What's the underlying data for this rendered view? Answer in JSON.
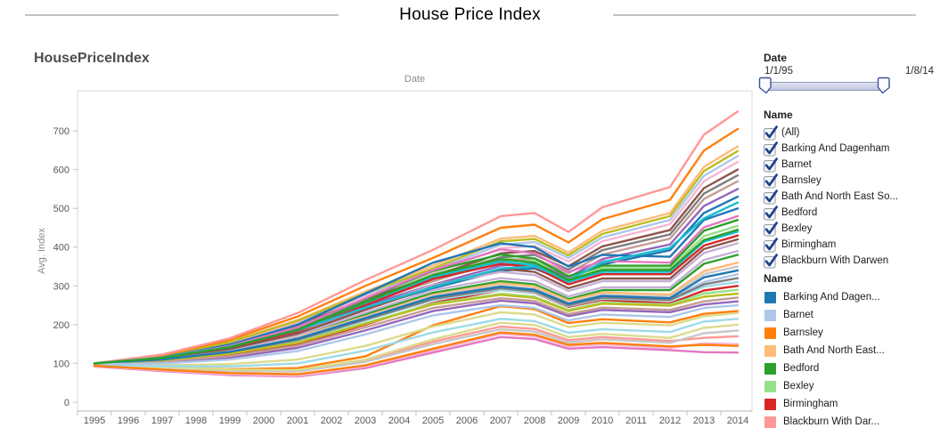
{
  "title": "House Price Index",
  "sheet_title": "HousePriceIndex",
  "date_filter": {
    "label": "Date",
    "start": "1/1/95",
    "end": "1/8/14"
  },
  "name_filter": {
    "label": "Name",
    "items": [
      {
        "label": "(All)",
        "checked": true
      },
      {
        "label": "Barking And Dagenham",
        "checked": true
      },
      {
        "label": "Barnet",
        "checked": true
      },
      {
        "label": "Barnsley",
        "checked": true
      },
      {
        "label": "Bath And North East So...",
        "checked": true
      },
      {
        "label": "Bedford",
        "checked": true
      },
      {
        "label": "Bexley",
        "checked": true
      },
      {
        "label": "Birmingham",
        "checked": true
      },
      {
        "label": "Blackburn With Darwen",
        "checked": true
      }
    ]
  },
  "legend": {
    "label": "Name",
    "items": [
      {
        "label": "Barking And Dagen...",
        "color": "#1f77b4"
      },
      {
        "label": "Barnet",
        "color": "#aec7e8"
      },
      {
        "label": "Barnsley",
        "color": "#ff7f0e"
      },
      {
        "label": "Bath And North East...",
        "color": "#ffbb78"
      },
      {
        "label": "Bedford",
        "color": "#2ca02c"
      },
      {
        "label": "Bexley",
        "color": "#98df8a"
      },
      {
        "label": "Birmingham",
        "color": "#d62728"
      },
      {
        "label": "Blackburn With Dar...",
        "color": "#ff9896"
      }
    ]
  },
  "chart_data": {
    "type": "line",
    "title": "HousePriceIndex",
    "xlabel": "Date",
    "ylabel": "Avg. Index",
    "x_ticks": [
      1995,
      1996,
      1997,
      1998,
      1999,
      2000,
      2001,
      2002,
      2003,
      2004,
      2005,
      2006,
      2007,
      2008,
      2009,
      2010,
      2011,
      2012,
      2013,
      2014
    ],
    "y_ticks": [
      0,
      100,
      200,
      300,
      400,
      500,
      600,
      700
    ],
    "ylim": [
      0,
      800
    ],
    "xlim": [
      1995,
      2015
    ],
    "grid": false,
    "legend_position": "right",
    "x": [
      1995,
      1997,
      1999,
      2001,
      2003,
      2005,
      2007,
      2008,
      2009,
      2010,
      2012,
      2013,
      2014
    ],
    "series": [
      {
        "name": "Barking And Dagenham",
        "color": "#1f77b4",
        "values": [
          100,
          115,
          143,
          186,
          242,
          294,
          339,
          345,
          310,
          355,
          392,
          488,
          530
        ]
      },
      {
        "name": "Barnet",
        "color": "#aec7e8",
        "values": [
          100,
          119,
          154,
          207,
          277,
          341,
          406,
          413,
          372,
          425,
          470,
          584,
          635
        ]
      },
      {
        "name": "Barnsley",
        "color": "#ff7f0e",
        "values": [
          97,
          90,
          85,
          88,
          118,
          198,
          248,
          240,
          204,
          214,
          206,
          228,
          235
        ]
      },
      {
        "name": "Bath And North East Somerset",
        "color": "#ffbb78",
        "values": [
          100,
          120,
          156,
          212,
          285,
          352,
          422,
          429,
          386,
          442,
          488,
          607,
          660
        ]
      },
      {
        "name": "Bedford",
        "color": "#2ca02c",
        "values": [
          100,
          111,
          134,
          170,
          226,
          282,
          312,
          304,
          266,
          289,
          289,
          357,
          380
        ]
      },
      {
        "name": "Bexley",
        "color": "#98df8a",
        "values": [
          100,
          114,
          143,
          189,
          260,
          331,
          373,
          364,
          319,
          346,
          346,
          428,
          455
        ]
      },
      {
        "name": "Birmingham",
        "color": "#d62728",
        "values": [
          100,
          106,
          122,
          150,
          200,
          256,
          290,
          282,
          246,
          264,
          255,
          288,
          300
        ]
      },
      {
        "name": "Blackburn With Darwen",
        "color": "#ff9896",
        "values": [
          96,
          89,
          83,
          82,
          108,
          156,
          195,
          189,
          160,
          168,
          158,
          166,
          170
        ]
      },
      {
        "name": "",
        "color": "#9467bd",
        "values": [
          100,
          116,
          145,
          190,
          249,
          303,
          352,
          358,
          322,
          369,
          407,
          506,
          550
        ]
      },
      {
        "name": "",
        "color": "#c5b0d5",
        "values": [
          100,
          112,
          137,
          178,
          240,
          302,
          336,
          328,
          287,
          312,
          312,
          385,
          410
        ]
      },
      {
        "name": "",
        "color": "#8c564b",
        "values": [
          100,
          118,
          150,
          200,
          265,
          325,
          384,
          390,
          351,
          402,
          444,
          552,
          600
        ]
      },
      {
        "name": "",
        "color": "#c49c94",
        "values": [
          100,
          116,
          147,
          194,
          255,
          312,
          365,
          371,
          333,
          381,
          422,
          524,
          570
        ]
      },
      {
        "name": "",
        "color": "#e377c2",
        "values": [
          92,
          80,
          70,
          66,
          88,
          128,
          168,
          163,
          138,
          142,
          134,
          129,
          128
        ]
      },
      {
        "name": "",
        "color": "#f7b6d2",
        "values": [
          100,
          118,
          152,
          204,
          272,
          334,
          397,
          403,
          363,
          415,
          459,
          570,
          620
        ]
      },
      {
        "name": "",
        "color": "#7f7f7f",
        "values": [
          100,
          117,
          149,
          197,
          260,
          318,
          374,
          380,
          342,
          392,
          433,
          538,
          585
        ]
      },
      {
        "name": "",
        "color": "#c7c7c7",
        "values": [
          95,
          87,
          80,
          79,
          104,
          150,
          188,
          182,
          154,
          162,
          153,
          178,
          185
        ]
      },
      {
        "name": "",
        "color": "#bcbd22",
        "values": [
          100,
          119,
          155,
          210,
          281,
          345,
          415,
          421,
          379,
          434,
          480,
          596,
          648
        ]
      },
      {
        "name": "",
        "color": "#dbdb8d",
        "values": [
          96,
          90,
          84,
          83,
          110,
          162,
          205,
          199,
          168,
          176,
          166,
          192,
          200
        ]
      },
      {
        "name": "",
        "color": "#17becf",
        "values": [
          100,
          113,
          141,
          185,
          254,
          323,
          363,
          354,
          310,
          336,
          336,
          414,
          440
        ]
      },
      {
        "name": "",
        "color": "#9edae5",
        "values": [
          100,
          109,
          128,
          159,
          211,
          263,
          290,
          283,
          248,
          267,
          262,
          298,
          310
        ]
      },
      {
        "name": "",
        "color": "#1f77b4",
        "values": [
          100,
          116,
          148,
          200,
          280,
          360,
          410,
          400,
          350,
          380,
          375,
          470,
          500
        ]
      },
      {
        "name": "",
        "color": "#aec7e8",
        "values": [
          100,
          110,
          130,
          163,
          216,
          270,
          298,
          290,
          254,
          274,
          268,
          310,
          330
        ]
      },
      {
        "name": "",
        "color": "#ff7f0e",
        "values": [
          100,
          121,
          161,
          221,
          300,
          372,
          450,
          458,
          412,
          472,
          522,
          649,
          705
        ]
      },
      {
        "name": "",
        "color": "#ffbb78",
        "values": [
          100,
          111,
          133,
          168,
          221,
          277,
          307,
          299,
          262,
          283,
          278,
          338,
          360
        ]
      },
      {
        "name": "",
        "color": "#2ca02c",
        "values": [
          100,
          115,
          144,
          192,
          266,
          339,
          381,
          371,
          325,
          352,
          352,
          442,
          470
        ]
      },
      {
        "name": "",
        "color": "#98df8a",
        "values": [
          100,
          108,
          126,
          155,
          204,
          254,
          280,
          272,
          238,
          257,
          252,
          280,
          290
        ]
      },
      {
        "name": "",
        "color": "#d62728",
        "values": [
          100,
          113,
          140,
          183,
          250,
          318,
          357,
          348,
          304,
          330,
          330,
          404,
          430
        ]
      },
      {
        "name": "",
        "color": "#ff9896",
        "values": [
          100,
          123,
          165,
          230,
          315,
          393,
          480,
          488,
          439,
          503,
          555,
          690,
          750
        ]
      },
      {
        "name": "",
        "color": "#9467bd",
        "values": [
          98,
          102,
          115,
          140,
          185,
          235,
          262,
          255,
          222,
          238,
          232,
          252,
          260
        ]
      },
      {
        "name": "",
        "color": "#c5b0d5",
        "values": [
          100,
          112,
          135,
          173,
          231,
          289,
          320,
          312,
          273,
          296,
          296,
          367,
          390
        ]
      },
      {
        "name": "",
        "color": "#8c564b",
        "values": [
          100,
          112,
          137,
          177,
          238,
          298,
          344,
          336,
          294,
          319,
          319,
          395,
          420
        ]
      },
      {
        "name": "",
        "color": "#c49c94",
        "values": [
          99,
          105,
          119,
          146,
          193,
          243,
          268,
          261,
          227,
          244,
          238,
          260,
          270
        ]
      },
      {
        "name": "",
        "color": "#e377c2",
        "values": [
          100,
          115,
          145,
          193,
          268,
          341,
          394,
          384,
          336,
          364,
          360,
          451,
          480
        ]
      },
      {
        "name": "",
        "color": "#f7b6d2",
        "values": [
          93,
          82,
          72,
          68,
          92,
          134,
          176,
          170,
          144,
          149,
          140,
          152,
          150
        ]
      },
      {
        "name": "",
        "color": "#7f7f7f",
        "values": [
          100,
          109,
          129,
          161,
          213,
          266,
          294,
          286,
          250,
          270,
          264,
          304,
          320
        ]
      },
      {
        "name": "",
        "color": "#c7c7c7",
        "values": [
          100,
          110,
          131,
          166,
          219,
          274,
          301,
          293,
          256,
          277,
          272,
          330,
          350
        ]
      },
      {
        "name": "",
        "color": "#bcbd22",
        "values": [
          100,
          108,
          125,
          153,
          202,
          252,
          277,
          269,
          235,
          254,
          249,
          272,
          280
        ]
      },
      {
        "name": "",
        "color": "#dbdb8d",
        "values": [
          97,
          95,
          98,
          110,
          145,
          195,
          232,
          226,
          194,
          205,
          198,
          222,
          230
        ]
      },
      {
        "name": "",
        "color": "#17becf",
        "values": [
          100,
          115,
          143,
          186,
          244,
          297,
          345,
          350,
          315,
          361,
          398,
          474,
          515
        ]
      },
      {
        "name": "",
        "color": "#9edae5",
        "values": [
          97,
          93,
          92,
          100,
          133,
          180,
          215,
          209,
          179,
          188,
          181,
          208,
          215
        ]
      },
      {
        "name": "",
        "color": "#1f77b4",
        "values": [
          100,
          110,
          130,
          164,
          217,
          271,
          298,
          290,
          254,
          274,
          268,
          322,
          340
        ]
      },
      {
        "name": "",
        "color": "#aec7e8",
        "values": [
          98,
          100,
          110,
          132,
          175,
          224,
          250,
          243,
          211,
          226,
          220,
          243,
          250
        ]
      },
      {
        "name": "",
        "color": "#ff7f0e",
        "values": [
          94,
          84,
          75,
          72,
          95,
          138,
          180,
          174,
          148,
          153,
          144,
          148,
          145
        ]
      },
      {
        "name": "",
        "color": "#2ca02c",
        "values": [
          100,
          114,
          142,
          187,
          258,
          328,
          369,
          360,
          315,
          341,
          341,
          418,
          445
        ]
      }
    ]
  }
}
